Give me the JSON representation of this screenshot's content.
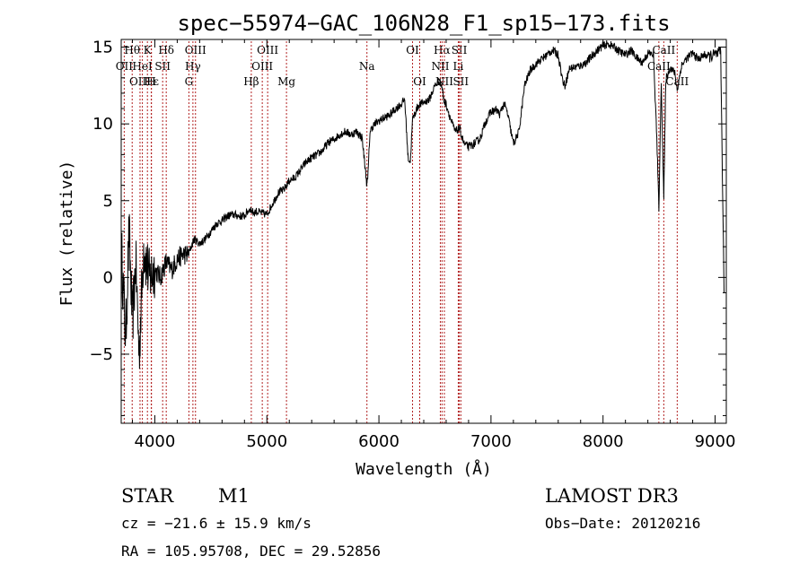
{
  "chart_data": {
    "type": "line",
    "title": "spec−55974−GAC_106N28_F1_sp15−173.fits",
    "xlabel": "Wavelength (Å)",
    "ylabel": "Flux (relative)",
    "xlim": [
      3700,
      9100
    ],
    "ylim": [
      -9.5,
      15.5
    ],
    "xticks": [
      4000,
      5000,
      6000,
      7000,
      8000,
      9000
    ],
    "yticks": [
      -5,
      0,
      5,
      10,
      15
    ],
    "series": [
      {
        "name": "spectrum",
        "x": [
          3700,
          3740,
          3770,
          3800,
          3830,
          3860,
          3900,
          3950,
          4000,
          4050,
          4100,
          4150,
          4200,
          4250,
          4300,
          4350,
          4400,
          4450,
          4500,
          4550,
          4600,
          4650,
          4700,
          4750,
          4800,
          4850,
          4880,
          4900,
          4950,
          5000,
          5050,
          5100,
          5150,
          5200,
          5250,
          5300,
          5350,
          5400,
          5450,
          5500,
          5550,
          5600,
          5650,
          5700,
          5750,
          5800,
          5850,
          5890,
          5900,
          5920,
          5950,
          6000,
          6050,
          6100,
          6150,
          6200,
          6230,
          6260,
          6280,
          6300,
          6350,
          6400,
          6450,
          6500,
          6540,
          6563,
          6580,
          6600,
          6640,
          6680,
          6720,
          6760,
          6800,
          6850,
          6900,
          6950,
          7000,
          7050,
          7080,
          7100,
          7120,
          7150,
          7200,
          7250,
          7300,
          7350,
          7400,
          7450,
          7500,
          7550,
          7600,
          7640,
          7660,
          7700,
          7750,
          7800,
          7850,
          7900,
          7950,
          8000,
          8050,
          8100,
          8150,
          8200,
          8250,
          8300,
          8350,
          8400,
          8450,
          8480,
          8498,
          8520,
          8542,
          8560,
          8600,
          8640,
          8662,
          8700,
          8750,
          8800,
          8850,
          8900,
          8950,
          9000,
          9050,
          9080
        ],
        "y": [
          2,
          -4,
          3,
          -3,
          1,
          -5,
          2,
          0,
          0.5,
          0,
          1,
          0.5,
          1.2,
          1.5,
          1.5,
          2.5,
          2.2,
          2.5,
          3,
          3.5,
          3.7,
          4,
          4.1,
          4,
          4,
          4.5,
          4.2,
          4.3,
          4.2,
          4.1,
          4.8,
          5.5,
          5.7,
          6.3,
          6.5,
          7.0,
          7.5,
          7.8,
          8,
          8.3,
          8.8,
          9,
          9.3,
          9.5,
          9.3,
          9.5,
          9.1,
          6.2,
          6.3,
          9.5,
          9.9,
          10.2,
          10.4,
          10.6,
          11,
          11.3,
          11.6,
          7.8,
          7.5,
          10.3,
          11.2,
          11.4,
          11.6,
          12.5,
          12.8,
          12.4,
          11.5,
          11.3,
          10.3,
          9.5,
          9.7,
          8.7,
          8.5,
          8.7,
          9,
          10.1,
          10.8,
          10.9,
          10.6,
          11.1,
          11.3,
          10.6,
          8.7,
          9.5,
          12.5,
          13.5,
          13.9,
          14.2,
          14.5,
          14.8,
          14.5,
          12.8,
          12.5,
          13.6,
          13.7,
          13.8,
          14,
          14.4,
          14.8,
          15.1,
          15.2,
          15.0,
          14.7,
          14.5,
          14.8,
          14.3,
          14.0,
          14.6,
          14.5,
          9,
          4.5,
          12.8,
          5,
          12.9,
          13.7,
          13.3,
          12.2,
          13.8,
          14.3,
          14.6,
          14.2,
          14.5,
          14.4,
          14.5,
          14.6,
          -1
        ]
      }
    ],
    "line_markers": [
      {
        "label": "Hθ",
        "wavelength": 3798,
        "row": 1
      },
      {
        "label": "K",
        "wavelength": 3934,
        "row": 1
      },
      {
        "label": "Hδ",
        "wavelength": 4102,
        "row": 1
      },
      {
        "label": "OIII",
        "wavelength": 4363,
        "row": 1
      },
      {
        "label": "OIII",
        "wavelength": 5007,
        "row": 1
      },
      {
        "label": "OI",
        "wavelength": 6300,
        "row": 1
      },
      {
        "label": "Hα",
        "wavelength": 6563,
        "row": 1
      },
      {
        "label": "SII",
        "wavelength": 6717,
        "row": 1
      },
      {
        "label": "CaII",
        "wavelength": 8542,
        "row": 1
      },
      {
        "label": "OII",
        "wavelength": 3727,
        "row": 2
      },
      {
        "label": "HeI",
        "wavelength": 3889,
        "row": 2
      },
      {
        "label": "SII",
        "wavelength": 4070,
        "row": 2
      },
      {
        "label": "Hγ",
        "wavelength": 4340,
        "row": 2
      },
      {
        "label": "OIII",
        "wavelength": 4959,
        "row": 2
      },
      {
        "label": "Na",
        "wavelength": 5893,
        "row": 2
      },
      {
        "label": "NII",
        "wavelength": 6548,
        "row": 2
      },
      {
        "label": "Li",
        "wavelength": 6708,
        "row": 2
      },
      {
        "label": "CaII",
        "wavelength": 8498,
        "row": 2
      },
      {
        "label": "OIII",
        "wavelength": 3868,
        "row": 3
      },
      {
        "label": "Hε",
        "wavelength": 3970,
        "row": 3
      },
      {
        "label": "H",
        "wavelength": 3968,
        "row": 3
      },
      {
        "label": "G",
        "wavelength": 4304,
        "row": 3
      },
      {
        "label": "Hβ",
        "wavelength": 4861,
        "row": 3
      },
      {
        "label": "Mg",
        "wavelength": 5175,
        "row": 3
      },
      {
        "label": "OI",
        "wavelength": 6364,
        "row": 3
      },
      {
        "label": "NII",
        "wavelength": 6584,
        "row": 3
      },
      {
        "label": "SII",
        "wavelength": 6731,
        "row": 3
      },
      {
        "label": "CaII",
        "wavelength": 8662,
        "row": 3
      }
    ],
    "marker_color": "#b22222"
  },
  "info": {
    "class_label": "STAR",
    "subclass": "M1",
    "survey": "LAMOST DR3",
    "cz": "cz = −21.6 ± 15.9 km/s",
    "obs_date": "Obs−Date: 20120216",
    "radec": "RA = 105.95708, DEC =  29.52856"
  }
}
